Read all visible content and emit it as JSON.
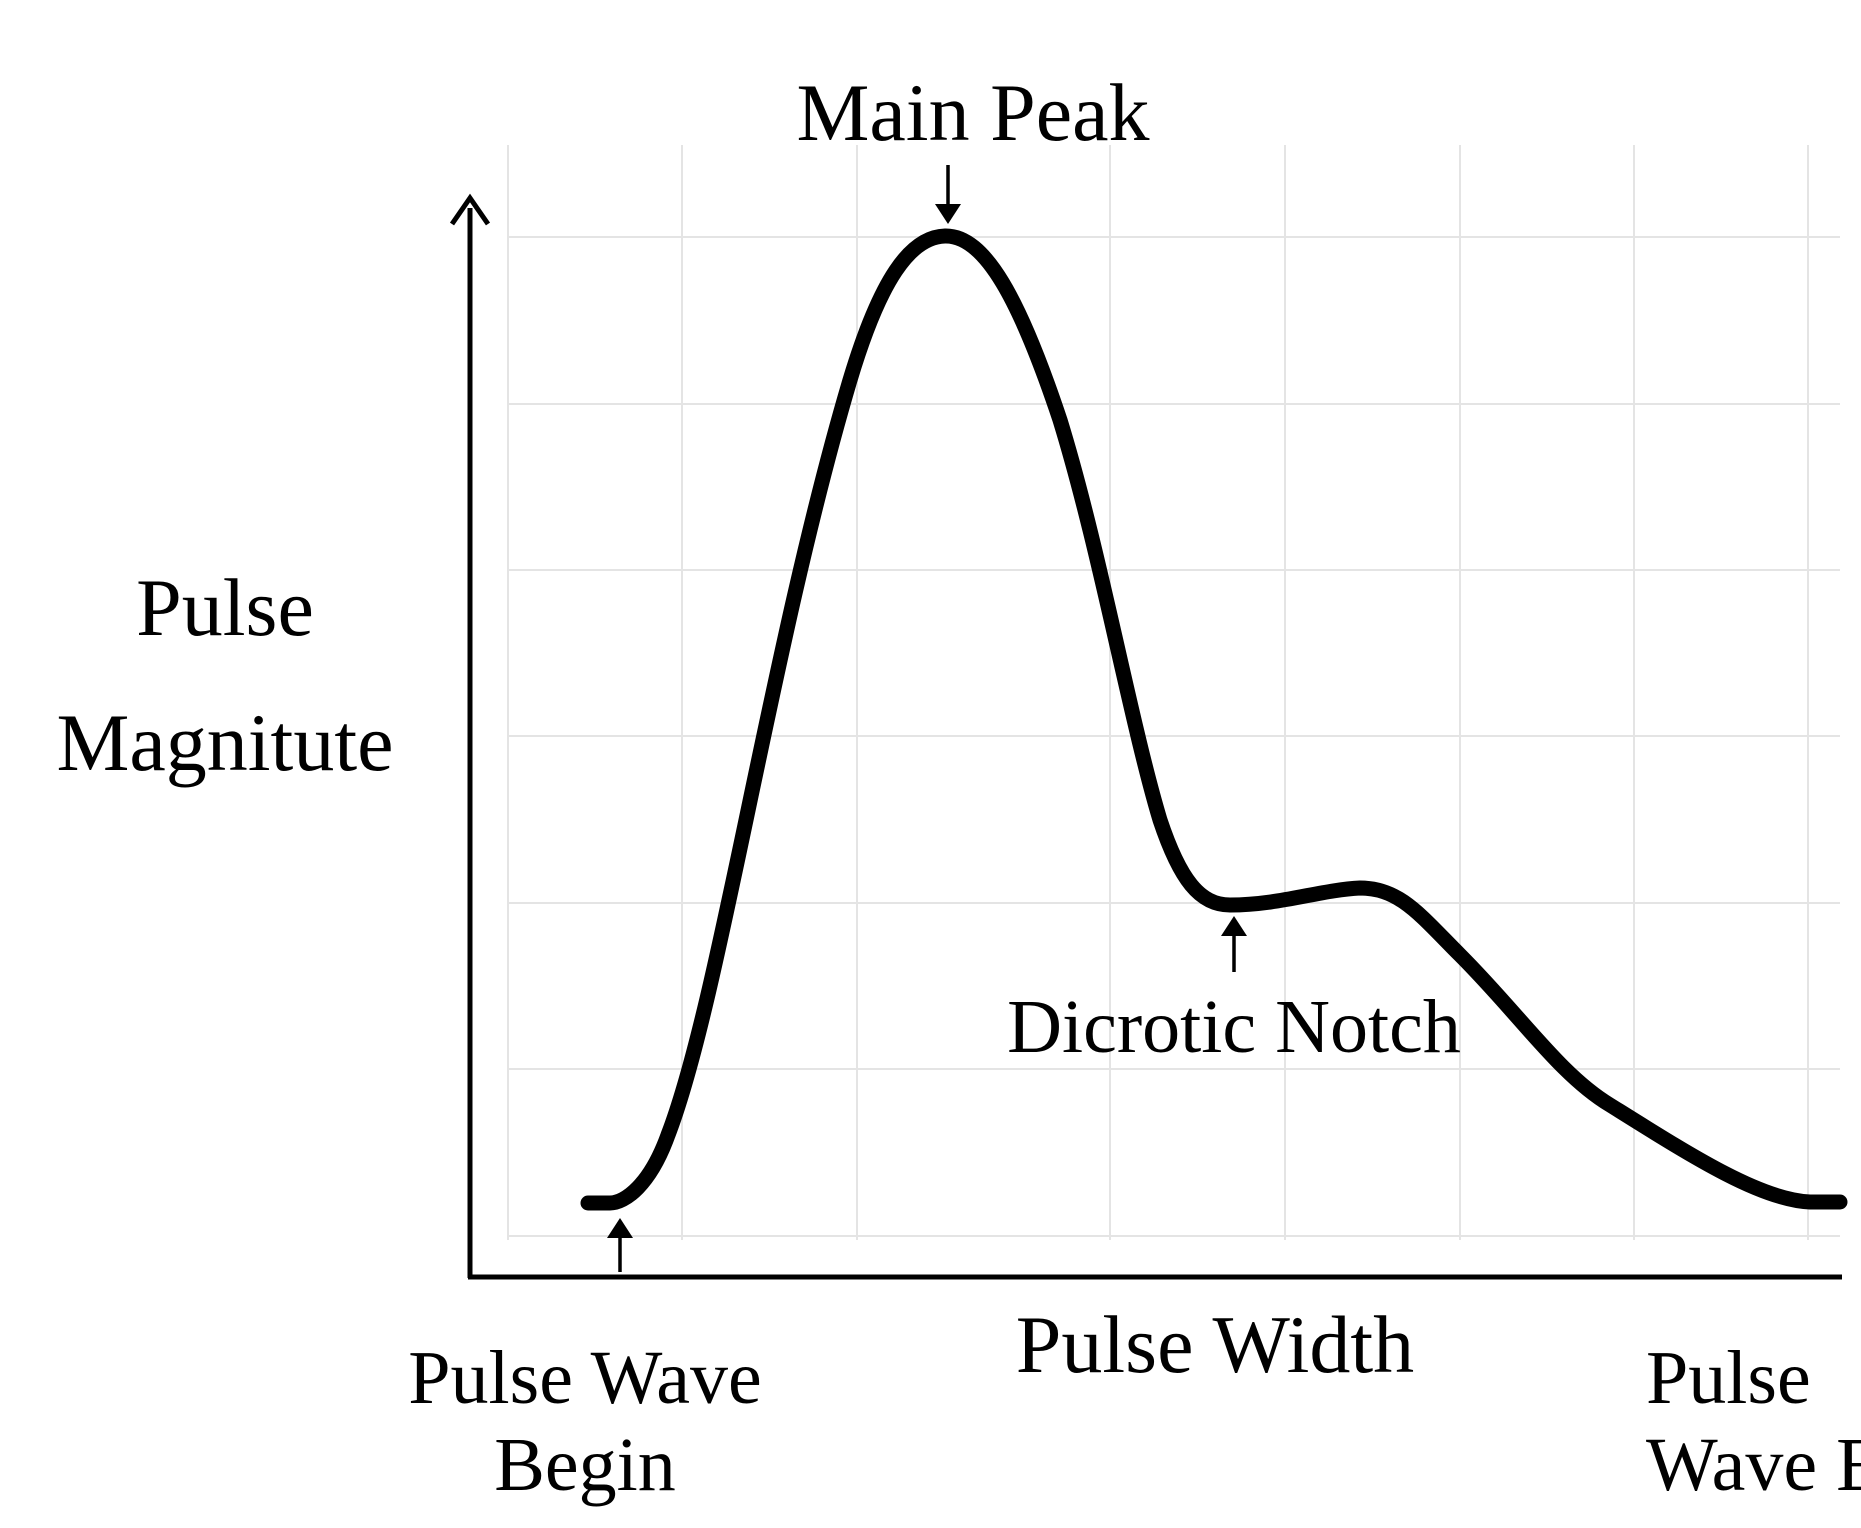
{
  "diagram": {
    "y_axis_label": [
      "Pulse",
      "Magnitute"
    ],
    "x_axis_label": "Pulse Width",
    "annotations": {
      "main_peak": "Main Peak",
      "dicrotic_notch": "Dicrotic Notch",
      "wave_begin": [
        "Pulse Wave",
        "Begin"
      ],
      "wave_end": [
        "Pulse",
        "Wave End"
      ]
    },
    "grid": true,
    "colors": {
      "line": "#000000",
      "grid": "#e4e4e4",
      "background": "#ffffff"
    }
  }
}
